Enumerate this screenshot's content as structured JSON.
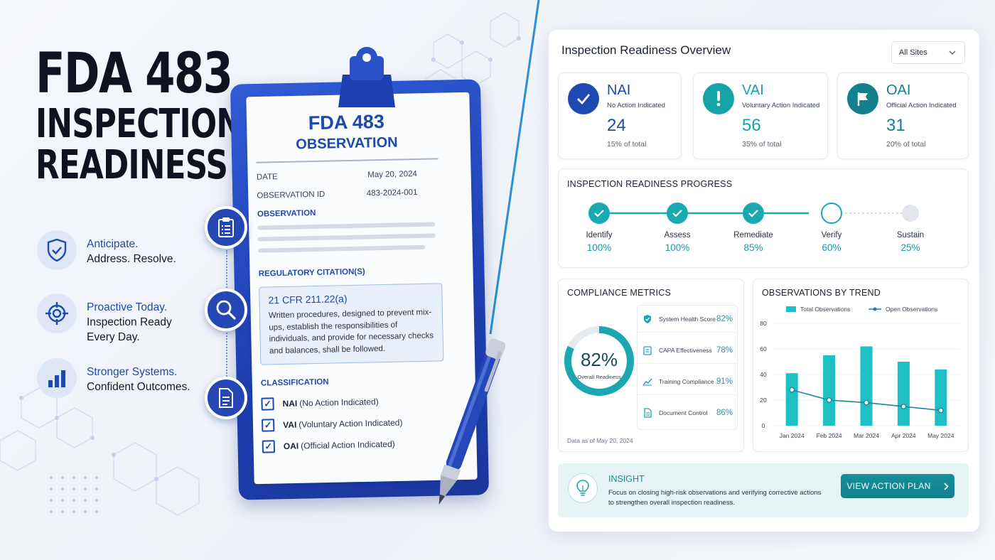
{
  "hero": {
    "title_line1": "FDA 483",
    "title_line2": "INSPECTION",
    "title_line3": "READINESS"
  },
  "features": [
    {
      "highlight": "Anticipate.",
      "line2": "Address. Resolve.",
      "line3": "",
      "icon": "shield-check-icon"
    },
    {
      "highlight": "Proactive Today.",
      "line2": "Inspection Ready",
      "line3": "Every Day.",
      "icon": "target-icon"
    },
    {
      "highlight": "Stronger Systems.",
      "line2": "Confident Outcomes.",
      "line3": "",
      "icon": "bar-chart-icon"
    }
  ],
  "clipboard": {
    "title1": "FDA 483",
    "title2": "OBSERVATION",
    "date_label": "DATE",
    "date_value": "May 20, 2024",
    "id_label": "OBSERVATION ID",
    "id_value": "483-2024-001",
    "observation_label": "OBSERVATION",
    "citation_label": "REGULATORY CITATION(S)",
    "citation_code": "21 CFR 211.22(a)",
    "citation_text": "Written procedures, designed to prevent mix-ups, establish the responsibilities of individuals, and provide for necessary checks and balances, shall be followed.",
    "classification_label": "CLASSIFICATION",
    "classifications": [
      {
        "code": "NAI",
        "desc": "(No Action Indicated)"
      },
      {
        "code": "VAI",
        "desc": "(Voluntary Action Indicated)"
      },
      {
        "code": "OAI",
        "desc": "(Official Action Indicated)"
      }
    ]
  },
  "dashboard": {
    "title": "Inspection Readiness Overview",
    "site_filter": "All Sites",
    "stats": [
      {
        "code": "NAI",
        "label": "No Action Indicated",
        "value": "24",
        "pct": "15% of total",
        "color": "#1d49b0",
        "icon": "check-icon"
      },
      {
        "code": "VAI",
        "label": "Voluntary Action Indicated",
        "value": "56",
        "pct": "35% of total",
        "color": "#16a3a8",
        "icon": "exclamation-icon"
      },
      {
        "code": "OAI",
        "label": "Official Action Indicated",
        "value": "31",
        "pct": "20% of total",
        "color": "#12808d",
        "icon": "flag-icon"
      }
    ],
    "progress": {
      "title": "INSPECTION READINESS PROGRESS",
      "steps": [
        {
          "label": "Identify",
          "pct": "100%",
          "state": "done"
        },
        {
          "label": "Assess",
          "pct": "100%",
          "state": "done"
        },
        {
          "label": "Remediate",
          "pct": "85%",
          "state": "done"
        },
        {
          "label": "Verify",
          "pct": "60%",
          "state": "current"
        },
        {
          "label": "Sustain",
          "pct": "25%",
          "state": "pending"
        }
      ]
    },
    "compliance": {
      "title": "COMPLIANCE METRICS",
      "overall_value": "82%",
      "overall_fraction": 0.82,
      "overall_label": "Overall Readiness",
      "footnote": "Data as of May 20, 2024",
      "metrics": [
        {
          "label": "System Health Score",
          "value": "82%",
          "icon": "shield-icon"
        },
        {
          "label": "CAPA Effectiveness",
          "value": "78%",
          "icon": "clipboard-icon"
        },
        {
          "label": "Training Compliance",
          "value": "91%",
          "icon": "trend-icon"
        },
        {
          "label": "Document Control",
          "value": "86%",
          "icon": "document-icon"
        }
      ]
    },
    "insight": {
      "title": "INSIGHT",
      "line1": "Focus on closing high-risk observations and verifying corrective actions",
      "line2": "to strengthen overall inspection readiness.",
      "button": "VIEW ACTION PLAN"
    }
  },
  "chart_data": {
    "type": "bar",
    "title": "OBSERVATIONS BY TREND",
    "categories": [
      "Jan 2024",
      "Feb 2024",
      "Mar 2024",
      "Apr 2024",
      "May 2024"
    ],
    "series": [
      {
        "name": "Total Observations",
        "type": "bar",
        "values": [
          41,
          55,
          62,
          50,
          44
        ],
        "color": "#1fc0c4"
      },
      {
        "name": "Open Observations",
        "type": "line",
        "values": [
          28,
          20,
          18,
          15,
          12
        ],
        "color": "#17889a"
      }
    ],
    "ylim": [
      0,
      80
    ],
    "yticks": [
      0,
      20,
      40,
      60,
      80
    ],
    "legend": "top",
    "grid": true
  }
}
